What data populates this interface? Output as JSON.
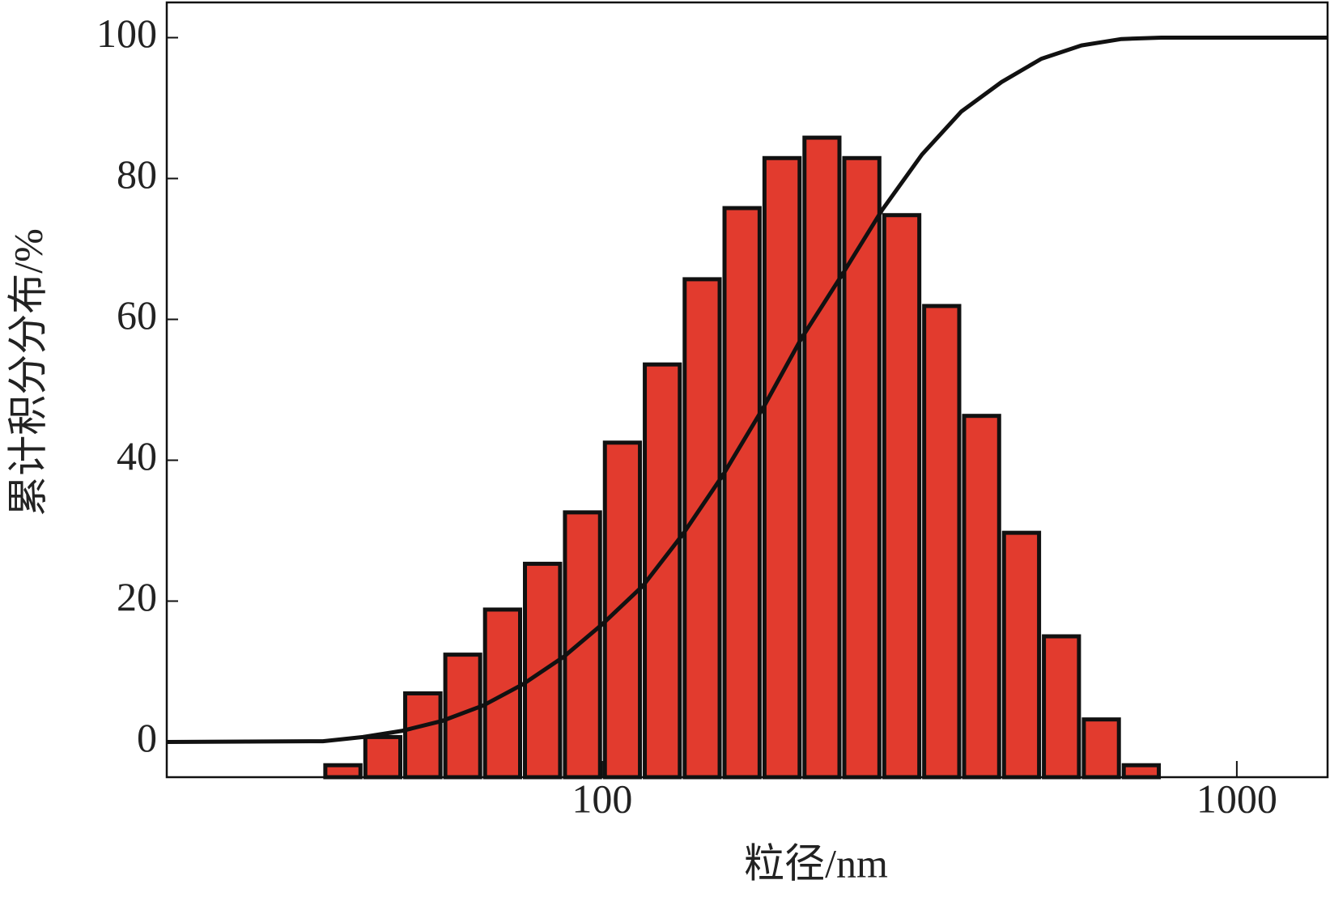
{
  "chart_data": [
    {
      "type": "histogram",
      "xlabel": "粒径/nm",
      "ylabel": "累计积分分布/%",
      "xscale": "log",
      "xlim": [
        20.6,
        1390
      ],
      "ylim": [
        -5,
        105
      ],
      "xticks": [
        100,
        1000
      ],
      "yticks": [
        0,
        20,
        40,
        60,
        80,
        100
      ],
      "color": "#e23b2e",
      "edgecolor": "#111111",
      "bins": [
        36.3,
        41.97,
        48.5,
        56.1,
        64.8,
        74.9,
        86.6,
        100.1,
        115.7,
        133.7,
        154.5,
        178.6,
        206.5,
        238.6,
        275.8,
        318.8,
        368.5,
        425.9,
        492.3,
        569.0,
        657.7,
        760.2
      ],
      "values": [
        -3.3,
        0.7,
        6.9,
        12.4,
        18.8,
        25.3,
        32.6,
        42.5,
        53.6,
        65.7,
        75.8,
        82.9,
        85.8,
        82.9,
        74.8,
        61.9,
        46.3,
        29.7,
        15.0,
        3.2,
        -3.3
      ]
    },
    {
      "type": "line",
      "color": "#111111",
      "x": [
        20.6,
        36.3,
        42,
        48.5,
        56,
        65,
        75,
        87,
        100,
        116,
        134,
        155,
        179,
        206,
        239,
        276,
        319,
        368,
        426,
        492,
        569,
        658,
        760,
        1390
      ],
      "values": [
        0,
        0.1,
        0.7,
        1.6,
        3,
        5.2,
        8.2,
        12.1,
        16.7,
        22.2,
        29.5,
        37.9,
        47.3,
        57.3,
        66.4,
        75.5,
        83.4,
        89.5,
        93.7,
        97,
        98.9,
        99.8,
        100,
        100
      ]
    }
  ]
}
